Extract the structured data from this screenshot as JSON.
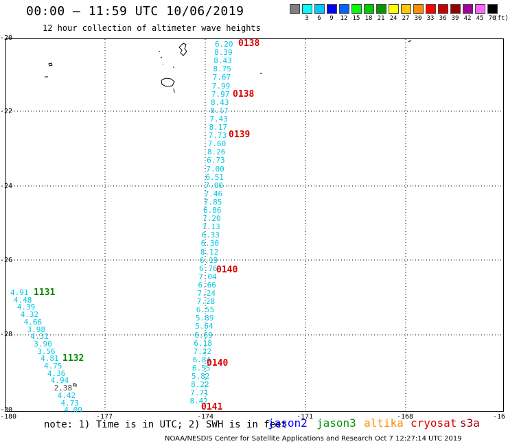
{
  "title": "00:00 – 11:59 UTC 10/06/2019",
  "subtitle": "12 hour collection of altimeter wave heights",
  "scale": {
    "unit": "(ft)",
    "swatches": [
      {
        "label": "",
        "color": "#808080"
      },
      {
        "label": "3",
        "color": "#00ffff"
      },
      {
        "label": "6",
        "color": "#00c8ff"
      },
      {
        "label": "9",
        "color": "#0000ff"
      },
      {
        "label": "12",
        "color": "#0064ff"
      },
      {
        "label": "15",
        "color": "#00ff00"
      },
      {
        "label": "18",
        "color": "#00cc00"
      },
      {
        "label": "21",
        "color": "#009600"
      },
      {
        "label": "24",
        "color": "#ffff00"
      },
      {
        "label": "27",
        "color": "#ffc800"
      },
      {
        "label": "30",
        "color": "#ff8c00"
      },
      {
        "label": "33",
        "color": "#ff0000"
      },
      {
        "label": "36",
        "color": "#c80000"
      },
      {
        "label": "39",
        "color": "#960000"
      },
      {
        "label": "42",
        "color": "#a000a0"
      },
      {
        "label": "45",
        "color": "#ff64ff"
      },
      {
        "label": "70",
        "color": "#000000"
      }
    ]
  },
  "axes": {
    "lat_labels": [
      "-20",
      "-22",
      "-24",
      "-26",
      "-28",
      "-30"
    ],
    "lon_labels": [
      "-180",
      "-177",
      "-174",
      "-171",
      "-168",
      "-16"
    ]
  },
  "colors": {
    "cyan_values": "#00c8e6",
    "pass_time": "#dd0000",
    "pass_time_green": "#008800",
    "grey_value": "#444444"
  },
  "track_east": {
    "values": [
      "6.20",
      "8.39",
      "8.43",
      "8.75",
      "7.67",
      "7.99",
      "7.97",
      "8.43",
      "8.17",
      "7.43",
      "8.17",
      "7.73",
      "7.60",
      "8.26",
      "6.73",
      "7.00",
      "6.51",
      "7.00",
      "7.46",
      "7.85",
      "6.86",
      "7.20",
      "7.13",
      "6.33",
      "6.30",
      "8.12",
      "6.19",
      "6.76",
      "7.04",
      "6.66",
      "7.24",
      "7.28",
      "6.55",
      "5.89",
      "5.64",
      "6.69",
      "6.18",
      "7.22",
      "6.84",
      "6.55",
      "5.82",
      "8.22",
      "7.71",
      "8.42"
    ],
    "times": [
      "0138",
      "0138",
      "0139",
      "0140",
      "0140",
      "0141"
    ]
  },
  "track_west": {
    "values": [
      "4.91",
      "4.48",
      "4.39",
      "4.32",
      "4.66",
      "3.98",
      "4.31",
      "3.90",
      "3.56",
      "4.81",
      "4.75",
      "4.36",
      "4.94",
      "2.38",
      "4.42",
      "4.73",
      "4.09"
    ],
    "times": [
      "1131",
      "1132"
    ]
  },
  "note": "note:  1) Time is in UTC;  2) SWH is in feet",
  "legend": [
    {
      "name": "jason2",
      "color": "#0000ff"
    },
    {
      "name": "jason3",
      "color": "#009600"
    },
    {
      "name": "altika",
      "color": "#ff8c00"
    },
    {
      "name": "cryosat",
      "color": "#dd0000"
    },
    {
      "name": "s3a",
      "color": "#990000"
    }
  ],
  "credit": "NOAA/NESDIS Center for Satellite Applications and Research   Oct  7 12:27:14 UTC 2019"
}
